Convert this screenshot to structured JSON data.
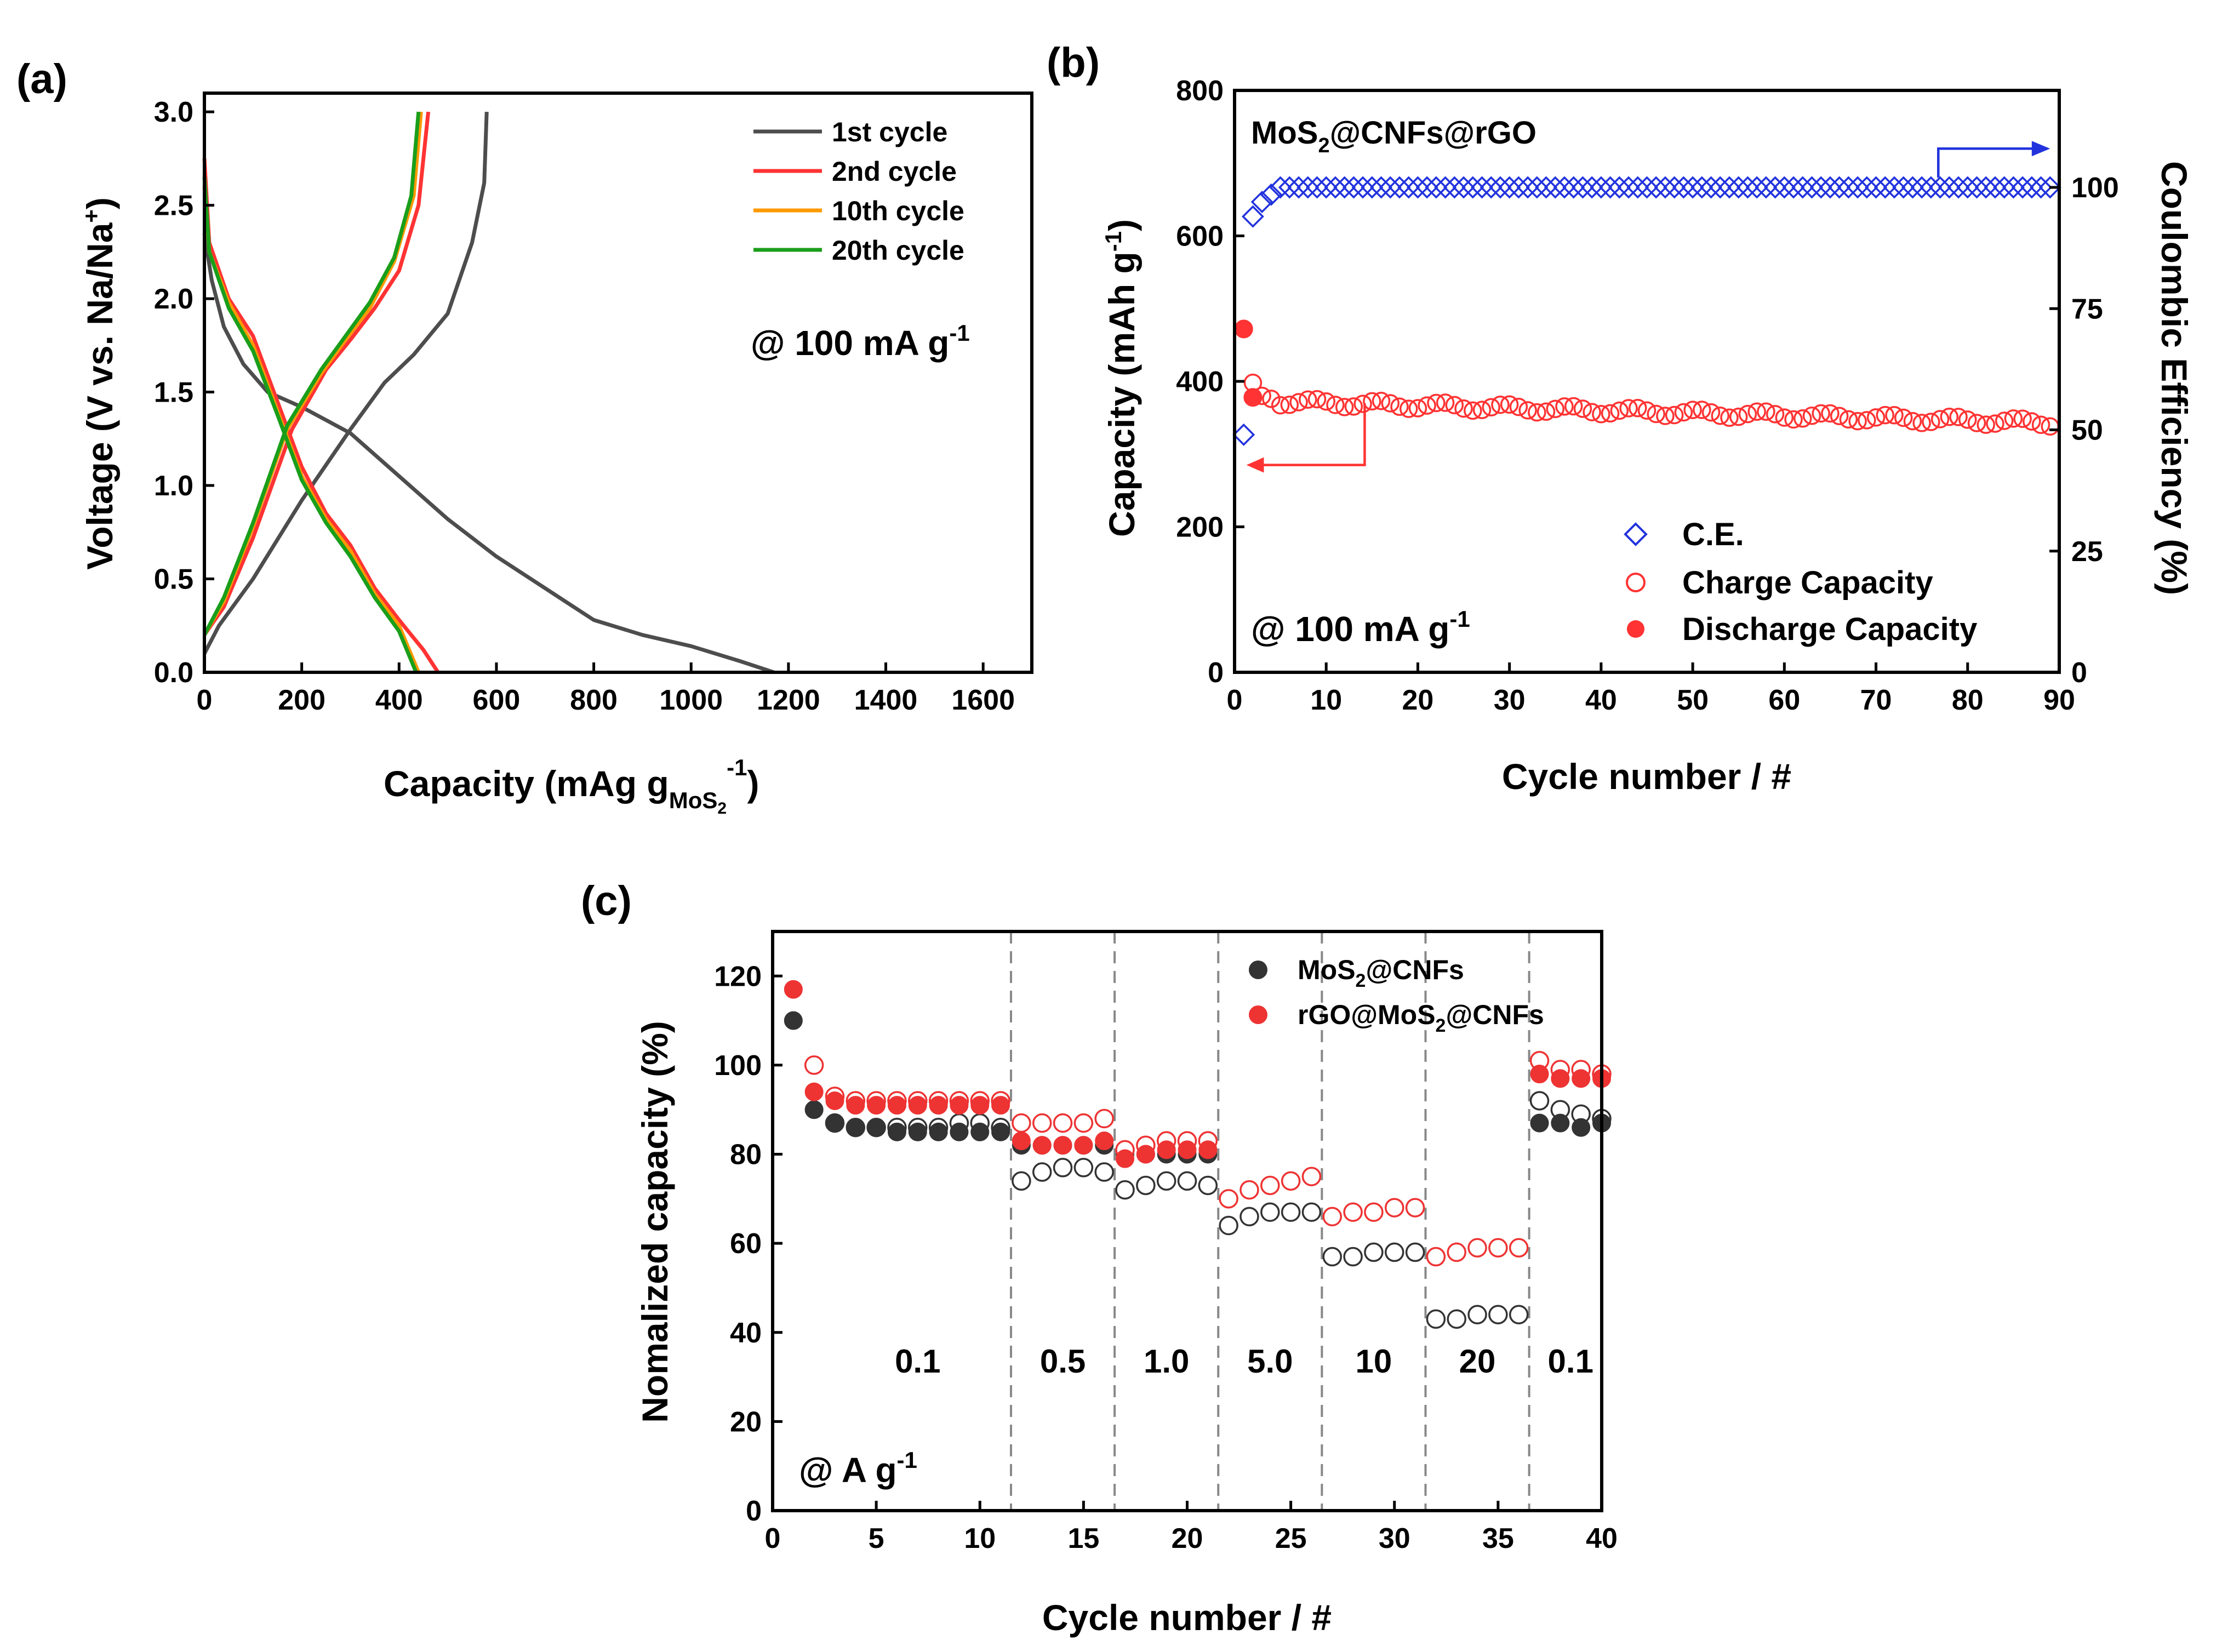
{
  "panel_labels": {
    "a": "(a)",
    "b": "(b)",
    "c": "(c)"
  },
  "colors": {
    "black": "#000000",
    "gray": "#4d4d4d",
    "red": "#ff3333",
    "orange": "#ff9900",
    "green": "#1a9e1a",
    "blue": "#2233dd",
    "dark_marker": "#333333",
    "red_marker": "#ee3333",
    "dash": "#888888"
  },
  "chart_data": [
    {
      "id": "a",
      "type": "line",
      "title": "",
      "xlabel_main": "Capacity (mAg g",
      "xlabel_sub": "MoS",
      "xlabel_subsub": "2",
      "xlabel_sup": "-1",
      "xlabel_close": ")",
      "ylabel": "Voltage (V vs. Na/Na",
      "ylabel_sup": "+",
      "ylabel_close": ")",
      "xlim": [
        0,
        1700
      ],
      "ylim": [
        0,
        3.1
      ],
      "xticks": [
        0,
        200,
        400,
        600,
        800,
        1000,
        1200,
        1400,
        1600
      ],
      "xtick_labels": [
        "0",
        "200",
        "400",
        "600",
        "800",
        "1000",
        "1200",
        "1400",
        "1600"
      ],
      "yticks": [
        0,
        0.5,
        1.0,
        1.5,
        2.0,
        2.5,
        3.0
      ],
      "ytick_labels": [
        "0.0",
        "0.5",
        "1.0",
        "1.5",
        "2.0",
        "2.5",
        "3.0"
      ],
      "annotation_main": "@ 100 mA g",
      "annotation_sup": "-1",
      "legend_position": "top-right",
      "series": [
        {
          "name": "1st cycle",
          "color": "#4d4d4d",
          "discharge": [
            [
              0,
              2.35
            ],
            [
              15,
              2.1
            ],
            [
              40,
              1.85
            ],
            [
              80,
              1.65
            ],
            [
              130,
              1.5
            ],
            [
              200,
              1.42
            ],
            [
              300,
              1.28
            ],
            [
              400,
              1.05
            ],
            [
              500,
              0.82
            ],
            [
              600,
              0.62
            ],
            [
              700,
              0.45
            ],
            [
              800,
              0.28
            ],
            [
              900,
              0.2
            ],
            [
              1000,
              0.14
            ],
            [
              1100,
              0.06
            ],
            [
              1170,
              0.0
            ]
          ],
          "charge": [
            [
              0,
              0.1
            ],
            [
              30,
              0.25
            ],
            [
              100,
              0.5
            ],
            [
              200,
              0.92
            ],
            [
              300,
              1.3
            ],
            [
              370,
              1.55
            ],
            [
              430,
              1.7
            ],
            [
              500,
              1.92
            ],
            [
              550,
              2.3
            ],
            [
              575,
              2.62
            ],
            [
              580,
              3.0
            ]
          ]
        },
        {
          "name": "2nd cycle",
          "color": "#ff3333",
          "discharge": [
            [
              0,
              2.75
            ],
            [
              10,
              2.3
            ],
            [
              50,
              2.0
            ],
            [
              100,
              1.8
            ],
            [
              150,
              1.45
            ],
            [
              200,
              1.1
            ],
            [
              250,
              0.85
            ],
            [
              300,
              0.68
            ],
            [
              350,
              0.45
            ],
            [
              400,
              0.28
            ],
            [
              450,
              0.12
            ],
            [
              480,
              0.0
            ]
          ],
          "charge": [
            [
              0,
              0.2
            ],
            [
              40,
              0.35
            ],
            [
              100,
              0.72
            ],
            [
              180,
              1.3
            ],
            [
              250,
              1.62
            ],
            [
              300,
              1.78
            ],
            [
              350,
              1.95
            ],
            [
              400,
              2.15
            ],
            [
              440,
              2.5
            ],
            [
              460,
              3.0
            ]
          ]
        },
        {
          "name": "10th cycle",
          "color": "#ff9900",
          "discharge": [
            [
              0,
              2.6
            ],
            [
              10,
              2.25
            ],
            [
              50,
              1.98
            ],
            [
              100,
              1.75
            ],
            [
              150,
              1.4
            ],
            [
              200,
              1.05
            ],
            [
              250,
              0.82
            ],
            [
              300,
              0.65
            ],
            [
              350,
              0.42
            ],
            [
              400,
              0.25
            ],
            [
              440,
              0.0
            ]
          ],
          "charge": [
            [
              0,
              0.2
            ],
            [
              40,
              0.38
            ],
            [
              100,
              0.78
            ],
            [
              170,
              1.3
            ],
            [
              240,
              1.6
            ],
            [
              290,
              1.78
            ],
            [
              340,
              1.95
            ],
            [
              390,
              2.2
            ],
            [
              430,
              2.55
            ],
            [
              445,
              3.0
            ]
          ]
        },
        {
          "name": "20th cycle",
          "color": "#1a9e1a",
          "discharge": [
            [
              0,
              2.65
            ],
            [
              10,
              2.25
            ],
            [
              50,
              1.95
            ],
            [
              100,
              1.72
            ],
            [
              150,
              1.38
            ],
            [
              200,
              1.03
            ],
            [
              250,
              0.8
            ],
            [
              300,
              0.62
            ],
            [
              350,
              0.4
            ],
            [
              400,
              0.22
            ],
            [
              435,
              0.0
            ]
          ],
          "charge": [
            [
              0,
              0.2
            ],
            [
              40,
              0.4
            ],
            [
              100,
              0.8
            ],
            [
              170,
              1.32
            ],
            [
              240,
              1.62
            ],
            [
              290,
              1.8
            ],
            [
              340,
              1.98
            ],
            [
              390,
              2.22
            ],
            [
              425,
              2.55
            ],
            [
              440,
              3.0
            ]
          ]
        }
      ]
    },
    {
      "id": "b",
      "type": "scatter",
      "title_main": "MoS",
      "title_sub": "2",
      "title_rest": "@CNFs@rGO",
      "xlabel": "Cycle number / #",
      "ylabel_main": "Capacity (mAh g",
      "ylabel_sup": "-1",
      "ylabel_close": ")",
      "y2label": "Coulombic Efficiency (%)",
      "xlim": [
        0,
        90
      ],
      "ylim": [
        0,
        800
      ],
      "y2lim": [
        0,
        120
      ],
      "xticks": [
        0,
        10,
        20,
        30,
        40,
        50,
        60,
        70,
        80,
        90
      ],
      "xtick_labels": [
        "0",
        "10",
        "20",
        "30",
        "40",
        "50",
        "60",
        "70",
        "80",
        "90"
      ],
      "yticks": [
        0,
        200,
        400,
        600,
        800
      ],
      "ytick_labels": [
        "0",
        "200",
        "400",
        "600",
        "800"
      ],
      "y2ticks": [
        0,
        25,
        50,
        75,
        100
      ],
      "y2tick_labels": [
        "0",
        "25",
        "50",
        "75",
        "100"
      ],
      "annotation_main": "@ 100 mA g",
      "annotation_sup": "-1",
      "legend_position": "bottom-right",
      "legend": [
        "C.E.",
        "Charge Capacity",
        "Discharge Capacity"
      ],
      "discharge_first": [
        [
          1,
          472
        ],
        [
          2,
          378
        ]
      ],
      "charge_first": [
        [
          2,
          398
        ],
        [
          3,
          380
        ],
        [
          4,
          376
        ]
      ],
      "charge_steady_start": 372,
      "charge_steady_end": 343,
      "ce_first": [
        [
          1,
          49
        ],
        [
          2,
          94
        ],
        [
          3,
          97
        ],
        [
          4,
          98.5
        ]
      ],
      "ce_steady": 100,
      "n_cycles": 89
    },
    {
      "id": "c",
      "type": "scatter",
      "title": "",
      "xlabel": "Cycle number / #",
      "ylabel": "Nomalized capacity (%)",
      "xlim": [
        0,
        40
      ],
      "ylim": [
        0,
        130
      ],
      "xticks": [
        0,
        5,
        10,
        15,
        20,
        25,
        30,
        35,
        40
      ],
      "xtick_labels": [
        "0",
        "5",
        "10",
        "15",
        "20",
        "25",
        "30",
        "35",
        "40"
      ],
      "yticks": [
        0,
        20,
        40,
        60,
        80,
        100,
        120
      ],
      "ytick_labels": [
        "0",
        "20",
        "40",
        "60",
        "80",
        "100",
        "120"
      ],
      "annotation_main": "@ A g",
      "annotation_sup": "-1",
      "legend_position": "top-right",
      "legend": [
        {
          "main": "MoS",
          "sub": "2",
          "rest": "@CNFs"
        },
        {
          "main": "rGO@MoS",
          "sub": "2",
          "rest": "@CNFs"
        }
      ],
      "dividers": [
        11.5,
        16.5,
        21.5,
        26.5,
        31.5,
        36.5
      ],
      "rates": [
        {
          "label": "0.1",
          "x": 7
        },
        {
          "label": "0.5",
          "x": 14
        },
        {
          "label": "1.0",
          "x": 19
        },
        {
          "label": "5.0",
          "x": 24
        },
        {
          "label": "10",
          "x": 29
        },
        {
          "label": "20",
          "x": 34
        },
        {
          "label": "0.1",
          "x": 38.5
        }
      ],
      "series": [
        {
          "name": "MoS2@CNFs",
          "color": "#333333",
          "discharge": [
            110,
            90,
            87,
            86,
            86,
            85,
            85,
            85,
            85,
            85,
            85,
            82,
            82,
            82,
            82,
            82,
            80,
            80,
            80,
            80,
            80,
            null,
            null,
            null,
            null,
            null,
            null,
            null,
            null,
            null,
            null,
            null,
            null,
            null,
            null,
            null,
            87,
            87,
            86,
            87
          ],
          "charge": [
            null,
            null,
            87,
            86,
            86,
            86,
            86,
            86,
            87,
            87,
            86,
            74,
            76,
            77,
            77,
            76,
            72,
            73,
            74,
            74,
            73,
            64,
            66,
            67,
            67,
            67,
            57,
            57,
            58,
            58,
            58,
            43,
            43,
            44,
            44,
            44,
            92,
            90,
            89,
            88
          ]
        },
        {
          "name": "rGO@MoS2@CNFs",
          "color": "#ee3333",
          "discharge": [
            117,
            94,
            92,
            91,
            91,
            91,
            91,
            91,
            91,
            91,
            91,
            83,
            82,
            82,
            82,
            83,
            79,
            80,
            81,
            81,
            81,
            null,
            null,
            null,
            null,
            null,
            null,
            null,
            null,
            null,
            null,
            null,
            null,
            null,
            null,
            null,
            98,
            97,
            97,
            97
          ],
          "charge": [
            null,
            100,
            93,
            92,
            92,
            92,
            92,
            92,
            92,
            92,
            92,
            87,
            87,
            87,
            87,
            88,
            81,
            82,
            83,
            83,
            83,
            70,
            72,
            73,
            74,
            75,
            66,
            67,
            67,
            68,
            68,
            57,
            58,
            59,
            59,
            59,
            101,
            99,
            99,
            98
          ]
        }
      ]
    }
  ]
}
